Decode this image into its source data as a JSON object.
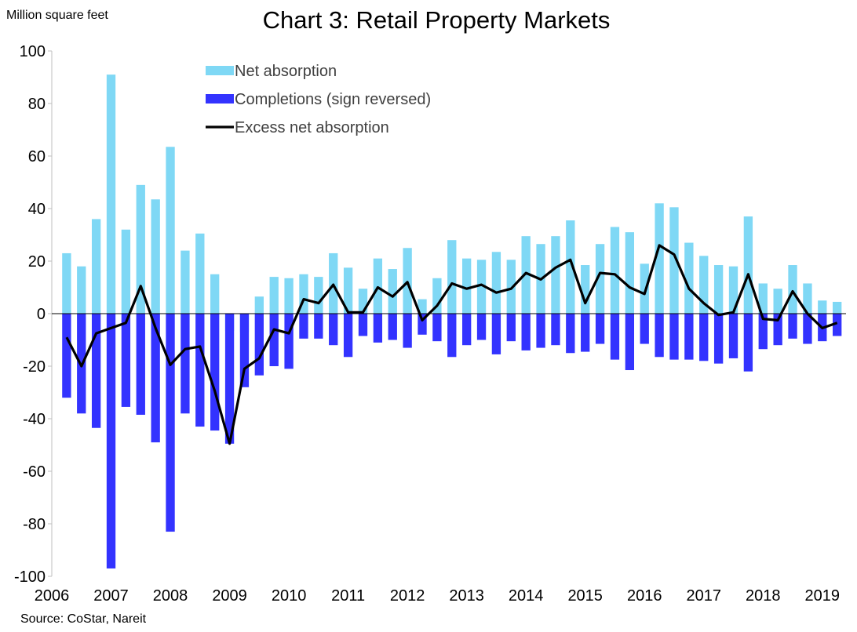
{
  "chart_data": {
    "type": "bar",
    "title": "Chart 3: Retail Property Markets",
    "ylabel": "Million square feet",
    "source": "Source: CoStar, Nareit",
    "ylim": [
      -100,
      100
    ],
    "yticks": [
      -100,
      -80,
      -60,
      -40,
      -20,
      0,
      20,
      40,
      60,
      80,
      100
    ],
    "xlim": [
      2006,
      2019.4
    ],
    "xticks": [
      2006,
      2007,
      2008,
      2009,
      2010,
      2011,
      2012,
      2013,
      2014,
      2015,
      2016,
      2017,
      2018,
      2019
    ],
    "grid": false,
    "legend": "top-left",
    "x": [
      2006.25,
      2006.5,
      2006.75,
      2007,
      2007.25,
      2007.5,
      2007.75,
      2008,
      2008.25,
      2008.5,
      2008.75,
      2009,
      2009.25,
      2009.5,
      2009.75,
      2010,
      2010.25,
      2010.5,
      2010.75,
      2011,
      2011.25,
      2011.5,
      2011.75,
      2012,
      2012.25,
      2012.5,
      2012.75,
      2013,
      2013.25,
      2013.5,
      2013.75,
      2014,
      2014.25,
      2014.5,
      2014.75,
      2015,
      2015.25,
      2015.5,
      2015.75,
      2016,
      2016.25,
      2016.5,
      2016.75,
      2017,
      2017.25,
      2017.5,
      2017.75,
      2018,
      2018.25,
      2018.5,
      2018.75,
      2019,
      2019.25
    ],
    "series": [
      {
        "name": "Net absorption",
        "kind": "bar",
        "color": "#7fd8f5",
        "values": [
          23,
          18,
          36,
          91,
          32,
          49,
          43.5,
          63.5,
          24,
          30.5,
          15,
          -6.5,
          -7,
          6.5,
          14,
          13.5,
          15,
          14,
          23,
          17.5,
          9.5,
          21,
          17,
          25,
          5.5,
          13.5,
          28,
          21,
          20.5,
          23.5,
          20.5,
          29.5,
          26.5,
          29.5,
          35.5,
          18.5,
          26.5,
          33,
          31,
          19,
          42,
          40.5,
          27,
          22,
          18.5,
          18,
          37,
          11.5,
          9.5,
          18.5,
          11.5,
          5,
          4.5
        ]
      },
      {
        "name": "Completions (sign reversed)",
        "kind": "bar",
        "color": "#3333ff",
        "values": [
          -32,
          -38,
          -43.5,
          -97,
          -35.5,
          -38.5,
          -49,
          -83,
          -38,
          -43,
          -44.5,
          -49.5,
          -28,
          -23.5,
          -20,
          -21,
          -9.5,
          -9.5,
          -12,
          -16.5,
          -8.5,
          -11,
          -10,
          -13,
          -8,
          -10.5,
          -16.5,
          -12,
          -10,
          -15.5,
          -10.5,
          -14,
          -13,
          -12,
          -15,
          -14.5,
          -11.5,
          -17.5,
          -21.5,
          -11.5,
          -16.5,
          -17.5,
          -17.5,
          -18,
          -19,
          -17,
          -22,
          -13.5,
          -12,
          -9.5,
          -11.5,
          -10.5,
          -8.5
        ]
      },
      {
        "name": "Excess net absorption",
        "kind": "line",
        "color": "#000000",
        "values": [
          -9,
          -20,
          -7.5,
          -5.5,
          -3.5,
          10.5,
          -5.5,
          -19.5,
          -13.5,
          -12.5,
          -29.5,
          -49.5,
          -21,
          -17,
          -6,
          -7.5,
          5.5,
          4,
          11,
          0.5,
          0.5,
          10,
          6.5,
          12,
          -2.5,
          3,
          11.5,
          9.5,
          11,
          8,
          9.5,
          15.5,
          13,
          17.5,
          20.5,
          4,
          15.5,
          15,
          10,
          7.5,
          26,
          22.5,
          9.5,
          4,
          -0.5,
          0.5,
          15,
          -2,
          -2.5,
          8.5,
          0,
          -5.5,
          -3.5
        ]
      }
    ]
  }
}
